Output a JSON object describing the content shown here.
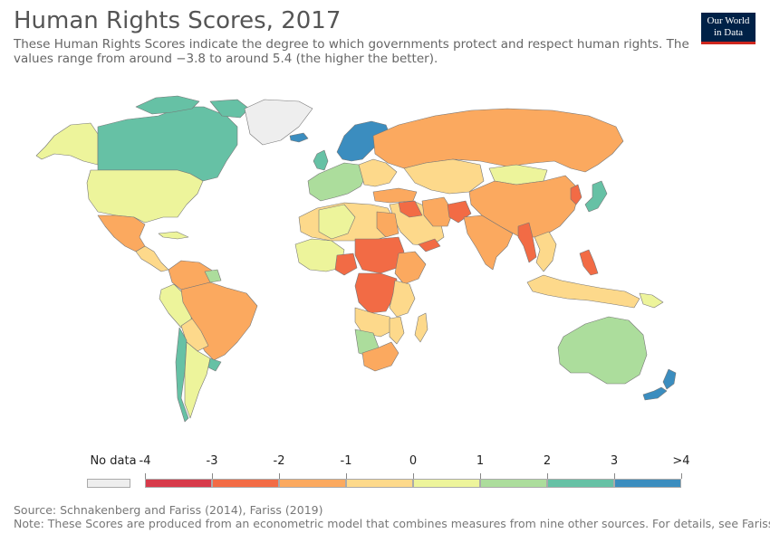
{
  "title": "Human Rights Scores, 2017",
  "subtitle_line1": "These Human Rights Scores indicate the degree to which governments protect and respect human rights. The",
  "subtitle_line2": "values range from around −3.8 to around 5.4 (the higher the better).",
  "logo_line1": "Our World",
  "logo_line2": "in Data",
  "legend": {
    "no_data_label": "No data",
    "no_data_color": "#eeeeee",
    "tick_labels": [
      "-4",
      "-3",
      "-2",
      "-1",
      "0",
      "1",
      "2",
      "3",
      ">4"
    ],
    "bins": [
      {
        "from": -4,
        "to": -3,
        "color": "#d73a4a"
      },
      {
        "from": -3,
        "to": -2,
        "color": "#f26b45"
      },
      {
        "from": -2,
        "to": -1,
        "color": "#fba95f"
      },
      {
        "from": -1,
        "to": 0,
        "color": "#fdd98b"
      },
      {
        "from": 0,
        "to": 1,
        "color": "#edf49b"
      },
      {
        "from": 1,
        "to": 2,
        "color": "#acdd9c"
      },
      {
        "from": 2,
        "to": 3,
        "color": "#66c1a5"
      },
      {
        "from": 3,
        "to": 4,
        "color": "#3b8dbf"
      }
    ]
  },
  "source": "Source: Schnakenberg and Fariss (2014), Fariss (2019)",
  "note": "Note: These Scores are produced from an econometric model that combines measures from nine other sources. For details, see Fariss"
}
